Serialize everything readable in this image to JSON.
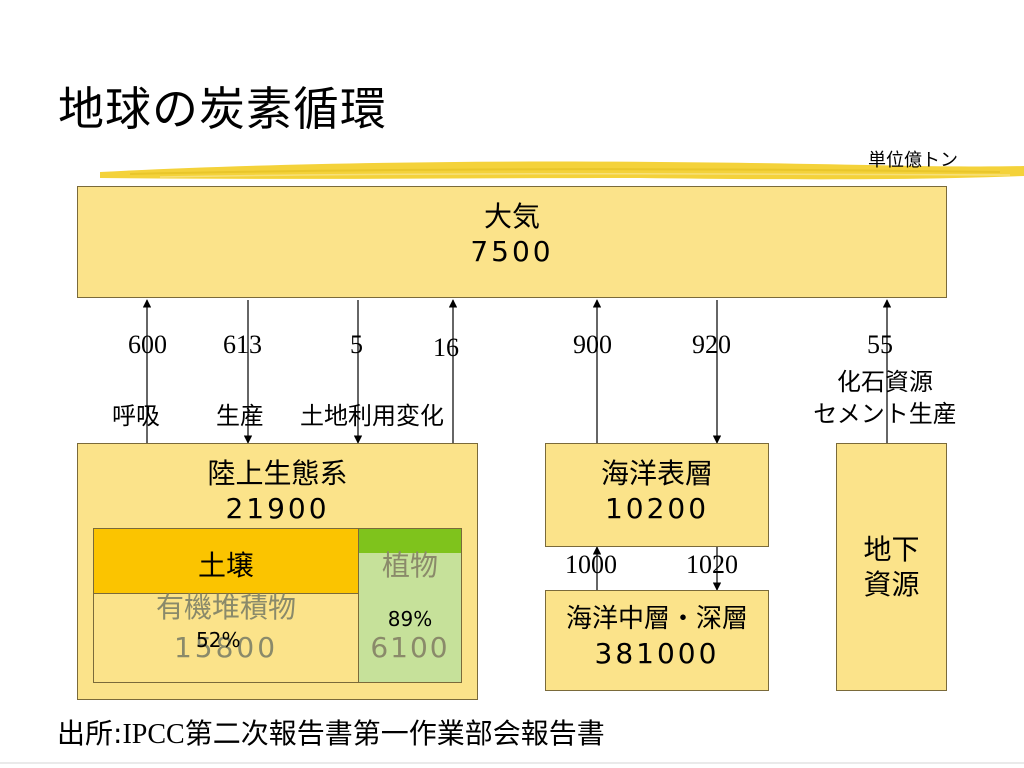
{
  "title": "地球の炭素循環",
  "unit": "単位億トン",
  "atmosphere": {
    "label": "大気",
    "value": "7500"
  },
  "flows": [
    {
      "value": "600"
    },
    {
      "value": "613"
    },
    {
      "value": "5"
    },
    {
      "value": "16"
    },
    {
      "value": "900"
    },
    {
      "value": "920"
    },
    {
      "value": "55"
    }
  ],
  "flow_labels": {
    "respiration": "呼吸",
    "production": "生産",
    "land_use": "土地利用変化",
    "fossil_1": "化石資源",
    "fossil_2": "セメント生産"
  },
  "land": {
    "label": "陸上生態系",
    "value": "21900"
  },
  "soil": {
    "label": "土壌",
    "sub": "有機堆積物",
    "percent": "52%",
    "value": "15800"
  },
  "plants": {
    "label": "植物",
    "percent": "89%",
    "value": "6100"
  },
  "ocean_surface": {
    "label": "海洋表層",
    "value": "10200"
  },
  "ocean_flows": {
    "down": "1000",
    "up": "1020"
  },
  "ocean_deep": {
    "label": "海洋中層・深層",
    "value": "381000"
  },
  "underground": {
    "line1": "地下",
    "line2": "資源"
  },
  "source": {
    "prefix": "出所:",
    "org": "IPCC",
    "rest": "第二次報告書第一作業部会報告書"
  },
  "colors": {
    "box_fill": "#fbe38a",
    "soil_fill": "#fbc400",
    "plant_fill": "#c6e19a",
    "plant_header": "#7fc31c"
  }
}
